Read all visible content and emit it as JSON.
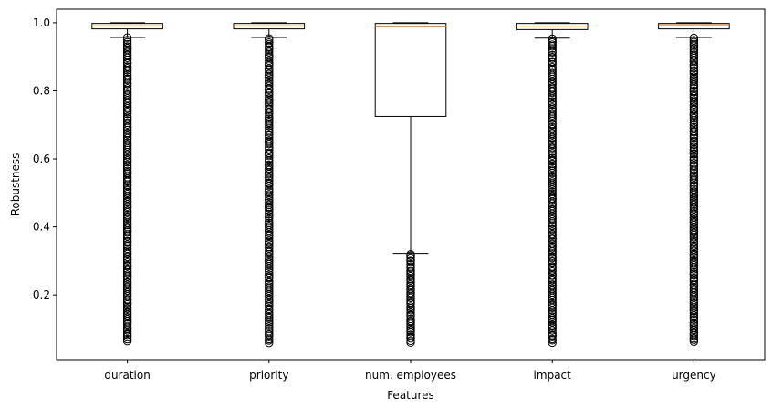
{
  "chart_data": {
    "type": "box",
    "xlabel": "Features",
    "ylabel": "Robustness",
    "ylim": [
      0.01,
      1.04
    ],
    "yticks": [
      0.2,
      0.4,
      0.6,
      0.8,
      1.0
    ],
    "ytick_labels": [
      "0.2",
      "0.4",
      "0.6",
      "0.8",
      "1.0"
    ],
    "grid": false,
    "colors": {
      "box": "#000000",
      "median": "#ff7f0e",
      "flier": "#000000"
    },
    "categories": [
      "duration",
      "priority",
      "num. employees",
      "impact",
      "urgency"
    ],
    "boxes": [
      {
        "category": "duration",
        "whisker_low": 0.957,
        "q1": 0.982,
        "median": 0.991,
        "q3": 0.998,
        "whisker_high": 1.0,
        "flier_min": 0.065,
        "flier_max": 0.955
      },
      {
        "category": "priority",
        "whisker_low": 0.957,
        "q1": 0.982,
        "median": 0.991,
        "q3": 0.998,
        "whisker_high": 1.0,
        "flier_min": 0.06,
        "flier_max": 0.955
      },
      {
        "category": "num. employees",
        "whisker_low": 0.322,
        "q1": 0.725,
        "median": 0.988,
        "q3": 0.998,
        "whisker_high": 1.0,
        "flier_min": 0.06,
        "flier_max": 0.32
      },
      {
        "category": "impact",
        "whisker_low": 0.955,
        "q1": 0.98,
        "median": 0.99,
        "q3": 0.998,
        "whisker_high": 1.0,
        "flier_min": 0.06,
        "flier_max": 0.953
      },
      {
        "category": "urgency",
        "whisker_low": 0.957,
        "q1": 0.982,
        "median": 0.994,
        "q3": 0.998,
        "whisker_high": 1.0,
        "flier_min": 0.062,
        "flier_max": 0.955
      }
    ]
  }
}
